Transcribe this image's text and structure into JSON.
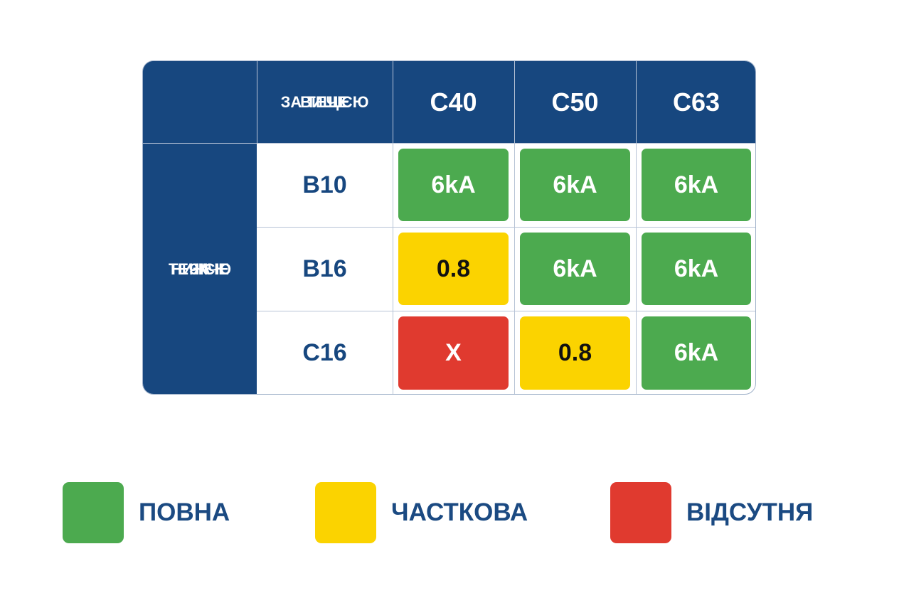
{
  "table": {
    "upstream_label": [
      "ВИЩЕ",
      "ЗА ТЕЧІЄЮ"
    ],
    "downstream_label": [
      "НИЖЧЕ",
      "ЗА",
      "ТЕЧІЄЮ"
    ],
    "columns": [
      "C40",
      "C50",
      "C63"
    ],
    "rows": [
      {
        "label": "B10",
        "cells": [
          {
            "text": "6kA",
            "color": "#4caa4f"
          },
          {
            "text": "6kA",
            "color": "#4caa4f"
          },
          {
            "text": "6kA",
            "color": "#4caa4f"
          }
        ]
      },
      {
        "label": "B16",
        "cells": [
          {
            "text": "0.8",
            "color": "#fbd300"
          },
          {
            "text": "6kA",
            "color": "#4caa4f"
          },
          {
            "text": "6kA",
            "color": "#4caa4f"
          }
        ]
      },
      {
        "label": "C16",
        "cells": [
          {
            "text": "X",
            "color": "#e03a2f"
          },
          {
            "text": "0.8",
            "color": "#fbd300"
          },
          {
            "text": "6kA",
            "color": "#4caa4f"
          }
        ]
      }
    ]
  },
  "legend": [
    {
      "label": "ПОВНА",
      "color": "#4caa4f"
    },
    {
      "label": "ЧАСТКОВА",
      "color": "#fbd300"
    },
    {
      "label": "ВІДСУТНЯ",
      "color": "#e03a2f"
    }
  ]
}
